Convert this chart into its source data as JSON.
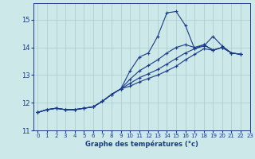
{
  "xlabel": "Graphe des températures (°c)",
  "background_color": "#cce8e8",
  "grid_color": "#aacccc",
  "line_color": "#1a3a8a",
  "xlim": [
    -0.5,
    23
  ],
  "ylim": [
    11,
    15.6
  ],
  "xticks": [
    0,
    1,
    2,
    3,
    4,
    5,
    6,
    7,
    8,
    9,
    10,
    11,
    12,
    13,
    14,
    15,
    16,
    17,
    18,
    19,
    20,
    21,
    22,
    23
  ],
  "yticks": [
    11,
    12,
    13,
    14,
    15
  ],
  "series": [
    [
      11.65,
      11.75,
      11.8,
      11.75,
      11.75,
      11.8,
      11.85,
      12.05,
      12.3,
      12.5,
      13.15,
      13.65,
      13.8,
      14.4,
      15.25,
      15.3,
      14.8,
      13.95,
      14.05,
      14.4,
      14.05,
      13.8,
      13.75
    ],
    [
      11.65,
      11.75,
      11.8,
      11.75,
      11.75,
      11.8,
      11.85,
      12.05,
      12.3,
      12.5,
      12.85,
      13.15,
      13.35,
      13.55,
      13.8,
      14.0,
      14.1,
      14.0,
      14.1,
      13.9,
      14.0,
      13.8,
      13.75
    ],
    [
      11.65,
      11.75,
      11.8,
      11.75,
      11.75,
      11.8,
      11.85,
      12.05,
      12.3,
      12.5,
      12.7,
      12.9,
      13.05,
      13.2,
      13.4,
      13.6,
      13.8,
      13.95,
      14.1,
      13.9,
      14.0,
      13.8,
      13.75
    ],
    [
      11.65,
      11.75,
      11.8,
      11.75,
      11.75,
      11.8,
      11.85,
      12.05,
      12.3,
      12.5,
      12.6,
      12.75,
      12.88,
      13.0,
      13.15,
      13.32,
      13.55,
      13.75,
      13.95,
      13.9,
      14.0,
      13.8,
      13.75
    ]
  ]
}
